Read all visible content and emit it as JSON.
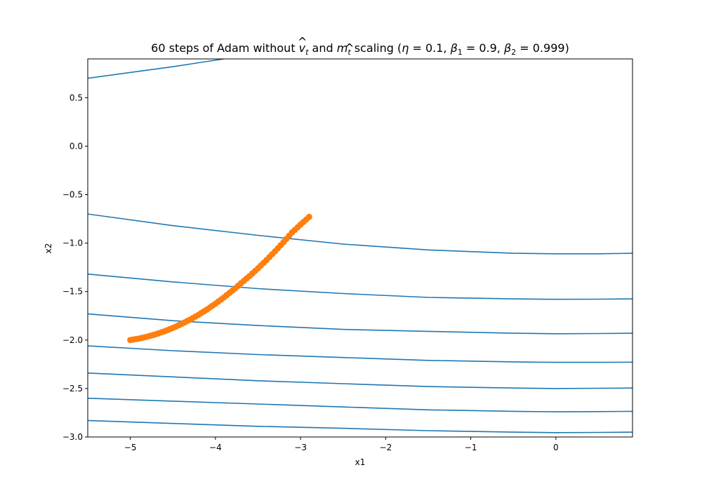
{
  "chart_data": {
    "type": "line",
    "title": {
      "prefix": "60 steps of Adam without ",
      "sym_v": "v",
      "sym_m": "m",
      "subscript": "t",
      "hat": "^",
      "and": " and ",
      "scaling": " scaling  (",
      "eta": "η",
      "beta": "β",
      "sub1": "1",
      "sub2": "2",
      "eq_eta": " = 0.1, ",
      "eq_b1": " = 0.9, ",
      "eq_b2": " = 0.999)"
    },
    "xlabel": "x1",
    "ylabel": "x2",
    "xlim": [
      -5.5,
      0.9
    ],
    "ylim": [
      -3.0,
      0.9
    ],
    "xticks": [
      -5,
      -4,
      -3,
      -2,
      -1,
      0
    ],
    "xtick_labels": [
      "−5",
      "−4",
      "−3",
      "−2",
      "−1",
      "0"
    ],
    "yticks": [
      0.5,
      0.0,
      -0.5,
      -1.0,
      -1.5,
      -2.0,
      -2.5,
      -3.0
    ],
    "ytick_labels": [
      "0.5",
      "0.0",
      "−0.5",
      "−1.0",
      "−1.5",
      "−2.0",
      "−2.5",
      "−3.0"
    ],
    "grid": false,
    "contour_color": "#1f77b4",
    "trajectory_color": "#ff7f0e",
    "contour_levels": [
      {
        "name": "contour-top",
        "x": [
          -5.5,
          -5.0,
          -4.5,
          -4.2,
          -3.9
        ],
        "y": [
          0.7,
          0.76,
          0.82,
          0.86,
          0.9
        ]
      },
      {
        "name": "contour-1",
        "x": [
          -5.5,
          -4.5,
          -3.5,
          -2.5,
          -1.5,
          -0.5,
          0.0,
          0.5,
          0.9
        ],
        "y": [
          -0.7,
          -0.82,
          -0.92,
          -1.01,
          -1.07,
          -1.105,
          -1.11,
          -1.11,
          -1.105
        ]
      },
      {
        "name": "contour-2",
        "x": [
          -5.5,
          -4.5,
          -3.5,
          -2.5,
          -1.5,
          -0.5,
          0.0,
          0.5,
          0.9
        ],
        "y": [
          -1.32,
          -1.4,
          -1.47,
          -1.52,
          -1.56,
          -1.575,
          -1.58,
          -1.578,
          -1.575
        ]
      },
      {
        "name": "contour-3",
        "x": [
          -5.5,
          -4.5,
          -3.5,
          -2.5,
          -1.5,
          -0.5,
          0.0,
          0.5,
          0.9
        ],
        "y": [
          -1.73,
          -1.8,
          -1.85,
          -1.89,
          -1.91,
          -1.93,
          -1.935,
          -1.933,
          -1.93
        ]
      },
      {
        "name": "contour-4",
        "x": [
          -5.5,
          -4.5,
          -3.5,
          -2.5,
          -1.5,
          -0.5,
          0.0,
          0.5,
          0.9
        ],
        "y": [
          -2.06,
          -2.11,
          -2.15,
          -2.18,
          -2.21,
          -2.225,
          -2.23,
          -2.23,
          -2.228
        ]
      },
      {
        "name": "contour-5",
        "x": [
          -5.5,
          -4.5,
          -3.5,
          -2.5,
          -1.5,
          -0.5,
          0.0,
          0.5,
          0.9
        ],
        "y": [
          -2.34,
          -2.38,
          -2.42,
          -2.45,
          -2.48,
          -2.495,
          -2.5,
          -2.497,
          -2.495
        ]
      },
      {
        "name": "contour-6",
        "x": [
          -5.5,
          -4.5,
          -3.5,
          -2.5,
          -1.5,
          -0.5,
          0.0,
          0.5,
          0.9
        ],
        "y": [
          -2.6,
          -2.63,
          -2.66,
          -2.69,
          -2.72,
          -2.735,
          -2.74,
          -2.738,
          -2.735
        ]
      },
      {
        "name": "contour-7",
        "x": [
          -5.5,
          -4.5,
          -3.5,
          -2.5,
          -1.5,
          -0.5,
          0.0,
          0.5,
          0.9
        ],
        "y": [
          -2.83,
          -2.86,
          -2.89,
          -2.91,
          -2.935,
          -2.95,
          -2.955,
          -2.953,
          -2.95
        ]
      }
    ],
    "trajectory": {
      "name": "adam-trajectory",
      "x": [
        -5.0,
        -4.9,
        -4.8,
        -4.7,
        -4.6,
        -4.5,
        -4.4,
        -4.3,
        -4.2,
        -4.1,
        -4.0,
        -3.9,
        -3.8,
        -3.7,
        -3.6,
        -3.5,
        -3.4,
        -3.3,
        -3.2,
        -3.1,
        -3.0,
        -2.9
      ],
      "y": [
        -2.0,
        -1.985,
        -1.965,
        -1.94,
        -1.91,
        -1.875,
        -1.835,
        -1.79,
        -1.74,
        -1.685,
        -1.625,
        -1.56,
        -1.49,
        -1.415,
        -1.34,
        -1.26,
        -1.175,
        -1.085,
        -0.99,
        -0.89,
        -0.81,
        -0.73
      ]
    }
  }
}
